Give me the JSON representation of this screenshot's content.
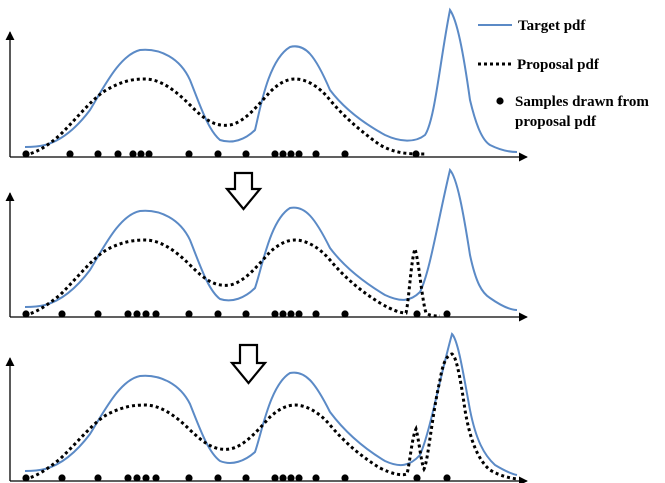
{
  "legend": {
    "target_label": "Target pdf",
    "proposal_label": "Proposal pdf",
    "samples_label_line1": "Samples drawn from",
    "samples_label_line2": "proposal pdf"
  },
  "colors": {
    "target": "#5b8ac6",
    "proposal": "#000000",
    "samples": "#000000",
    "axes": "#000000"
  },
  "icons": {
    "step_arrow": "down-arrow-icon"
  },
  "chart_data": [
    {
      "type": "line",
      "panel": 1,
      "series": [
        {
          "name": "Target pdf",
          "style": "solid",
          "peaks": [
            0.73,
            0.78,
            1.0
          ]
        },
        {
          "name": "Proposal pdf",
          "style": "dotted",
          "peaks": [
            0.55,
            0.55
          ]
        }
      ],
      "sample_count": 17
    },
    {
      "type": "line",
      "panel": 2,
      "series": [
        {
          "name": "Target pdf",
          "style": "solid",
          "peaks": [
            0.73,
            0.78,
            1.0
          ]
        },
        {
          "name": "Proposal pdf",
          "style": "dotted",
          "peaks": [
            0.55,
            0.55,
            0.45
          ]
        }
      ],
      "sample_count": 17
    },
    {
      "type": "line",
      "panel": 3,
      "series": [
        {
          "name": "Target pdf",
          "style": "solid",
          "peaks": [
            0.73,
            0.78,
            1.0
          ]
        },
        {
          "name": "Proposal pdf",
          "style": "dotted",
          "peaks": [
            0.55,
            0.55,
            0.35,
            0.87
          ]
        }
      ],
      "sample_count": 17
    }
  ]
}
